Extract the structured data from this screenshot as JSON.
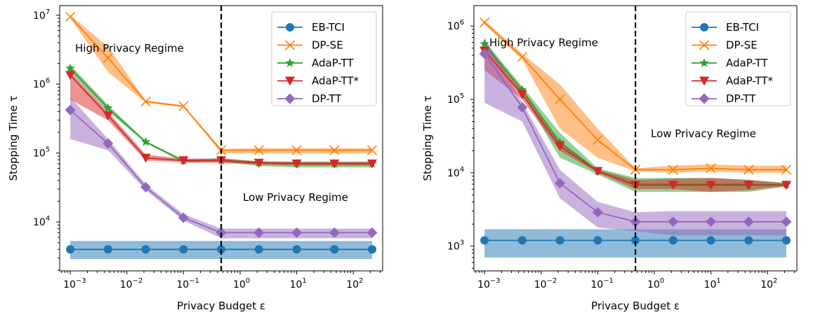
{
  "chart_data": [
    {
      "type": "line",
      "xlabel": "Privacy Budget ε",
      "ylabel": "Stopping Time τ",
      "xscale": "log",
      "yscale": "log",
      "xlim": [
        0.00065,
        330
      ],
      "ylim": [
        1950,
        13800000
      ],
      "xticks": [
        -3,
        -2,
        -1,
        0,
        1,
        2
      ],
      "yticks": [
        4,
        5,
        6,
        7
      ],
      "tick_base": "10",
      "x": [
        0.001,
        0.00464,
        0.0215,
        0.1,
        0.464,
        2.15,
        10,
        46.4,
        215
      ],
      "threshold_x": 0.464,
      "annotations": [
        "High Privacy Regime",
        "Low Privacy Regime"
      ],
      "legend": "top-right",
      "series": [
        {
          "name": "EB-TCI",
          "color": "#1f77b4",
          "marker": "circle",
          "values": [
            4000,
            4000,
            4000,
            4000,
            4000,
            4000,
            4000,
            4000,
            4000
          ],
          "lower": [
            2900,
            2900,
            2900,
            2900,
            2900,
            2900,
            2900,
            2900,
            2900
          ],
          "upper": [
            5300,
            5300,
            5300,
            5300,
            5300,
            5300,
            5300,
            5300,
            5300
          ]
        },
        {
          "name": "DP-SE",
          "color": "#ff7f0e",
          "marker": "x",
          "values": [
            9500000,
            2400000,
            560000,
            480000,
            110000,
            110000,
            110000,
            110000,
            110000
          ],
          "lower": [
            9000000,
            1500000,
            540000,
            460000,
            100000,
            100000,
            100000,
            100000,
            100000
          ],
          "upper": [
            10000000,
            3500000,
            580000,
            490000,
            115000,
            118000,
            118000,
            118000,
            118000
          ]
        },
        {
          "name": "AdaP-TT",
          "color": "#2ca02c",
          "marker": "star",
          "values": [
            1700000,
            450000,
            145000,
            77000,
            78000,
            72000,
            70000,
            70000,
            70000
          ],
          "lower": [
            1500000,
            400000,
            140000,
            73000,
            75000,
            65000,
            62000,
            62000,
            62000
          ],
          "upper": [
            1900000,
            500000,
            150000,
            80000,
            85000,
            75000,
            75000,
            75000,
            75000
          ]
        },
        {
          "name": "AdaP-TT*",
          "color": "#d62728",
          "marker": "triangle-down",
          "values": [
            1350000,
            350000,
            85000,
            78000,
            78000,
            72000,
            70000,
            70000,
            70000
          ],
          "lower": [
            600000,
            300000,
            78000,
            73000,
            72000,
            68000,
            66000,
            66000,
            66000
          ],
          "upper": [
            1500000,
            400000,
            95000,
            83000,
            83000,
            76000,
            75000,
            75000,
            75000
          ]
        },
        {
          "name": "DP-TT",
          "color": "#9467bd",
          "marker": "diamond",
          "values": [
            420000,
            138000,
            32000,
            11500,
            7000,
            7000,
            7000,
            7000,
            7000
          ],
          "lower": [
            160000,
            110000,
            29000,
            10500,
            5800,
            5800,
            5800,
            5800,
            5800
          ],
          "upper": [
            650000,
            160000,
            35000,
            13000,
            8000,
            8000,
            8000,
            8000,
            8000
          ]
        }
      ]
    },
    {
      "type": "line",
      "xlabel": "Privacy Budget ε",
      "ylabel": "Stopping Time τ",
      "xscale": "log",
      "yscale": "log",
      "xlim": [
        0.00065,
        330
      ],
      "ylim": [
        460,
        1900000
      ],
      "xticks": [
        -3,
        -2,
        -1,
        0,
        1,
        2
      ],
      "yticks": [
        3,
        4,
        5,
        6
      ],
      "tick_base": "10",
      "x": [
        0.001,
        0.00464,
        0.0215,
        0.1,
        0.464,
        2.15,
        10,
        46.4,
        215
      ],
      "threshold_x": 0.464,
      "annotations": [
        "High Privacy Regime",
        "Low Privacy Regime"
      ],
      "legend": "top-right",
      "series": [
        {
          "name": "EB-TCI",
          "color": "#1f77b4",
          "marker": "circle",
          "values": [
            1200,
            1200,
            1200,
            1200,
            1200,
            1200,
            1200,
            1200,
            1200
          ],
          "lower": [
            700,
            700,
            700,
            700,
            700,
            700,
            700,
            700,
            700
          ],
          "upper": [
            1700,
            1700,
            1700,
            1700,
            1700,
            1700,
            1700,
            1700,
            1700
          ]
        },
        {
          "name": "DP-SE",
          "color": "#ff7f0e",
          "marker": "x",
          "values": [
            1120000,
            380000,
            100000,
            28000,
            11000,
            11000,
            11500,
            11000,
            11000
          ],
          "lower": [
            1050000,
            350000,
            40000,
            16000,
            10500,
            10000,
            10500,
            10000,
            10000
          ],
          "upper": [
            1200000,
            420000,
            160000,
            40000,
            11500,
            12500,
            13000,
            12500,
            12500
          ]
        },
        {
          "name": "AdaP-TT",
          "color": "#2ca02c",
          "marker": "star",
          "values": [
            570000,
            135000,
            26000,
            10500,
            7000,
            7000,
            7000,
            7000,
            6900
          ],
          "lower": [
            500000,
            120000,
            16000,
            9500,
            5500,
            5500,
            5500,
            5500,
            6500
          ],
          "upper": [
            630000,
            150000,
            35000,
            11500,
            8500,
            8500,
            8500,
            8000,
            7300
          ]
        },
        {
          "name": "AdaP-TT*",
          "color": "#d62728",
          "marker": "triangle-down",
          "values": [
            460000,
            117000,
            23000,
            10500,
            6800,
            6800,
            6800,
            6800,
            6800
          ],
          "lower": [
            250000,
            100000,
            20000,
            10000,
            6000,
            6000,
            5500,
            5800,
            6600
          ],
          "upper": [
            550000,
            130000,
            27000,
            11000,
            8000,
            8300,
            8500,
            8000,
            7200
          ]
        },
        {
          "name": "DP-TT",
          "color": "#9467bd",
          "marker": "diamond",
          "values": [
            420000,
            78000,
            7200,
            2900,
            2150,
            2150,
            2150,
            2150,
            2150
          ],
          "lower": [
            90000,
            50000,
            4500,
            1800,
            1600,
            1400,
            1400,
            1400,
            1400
          ],
          "upper": [
            700000,
            90000,
            11000,
            4000,
            2900,
            3000,
            3000,
            3000,
            3000
          ]
        }
      ]
    }
  ]
}
